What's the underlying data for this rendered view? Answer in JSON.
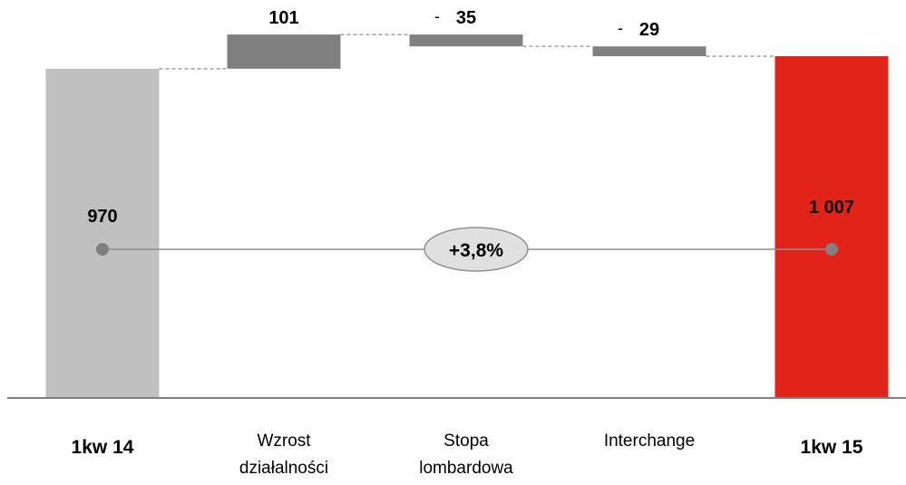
{
  "chart_data": {
    "type": "bar",
    "subtype": "waterfall",
    "categories": [
      "1kw 14",
      "Wzrost działalności",
      "Stopa lombardowa",
      "Interchange",
      "1kw 15"
    ],
    "category_lines": [
      [
        "1kw 14"
      ],
      [
        "Wzrost",
        "działalności"
      ],
      [
        "Stopa",
        "lombardowa"
      ],
      [
        "Interchange"
      ],
      [
        "1kw 15"
      ]
    ],
    "values": [
      970,
      101,
      -35,
      -29,
      1007
    ],
    "value_labels": [
      "970",
      "101",
      "35",
      "29",
      "1 007"
    ],
    "negative_markers": [
      "",
      "",
      "-",
      "-",
      ""
    ],
    "kinds": [
      "total",
      "delta",
      "delta",
      "delta",
      "total"
    ],
    "change_label": "+3,8%",
    "colors": {
      "start_total": "#c0c0c0",
      "delta": "#808080",
      "end_total": "#e2231a",
      "connector": "#a0a0a0",
      "baseline": "#808080",
      "ellipse_fill": "#e0e0e0",
      "ellipse_stroke": "#909090",
      "dot": "#808080"
    }
  }
}
